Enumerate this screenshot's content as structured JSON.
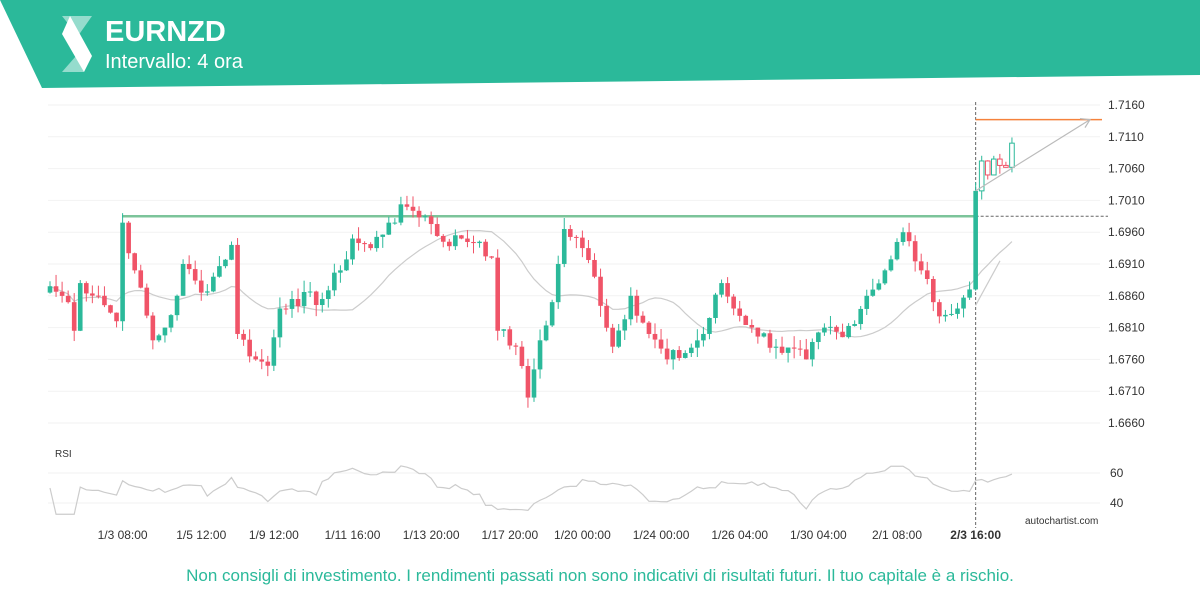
{
  "header": {
    "symbol": "EURNZD",
    "interval": "Intervallo: 4 ora"
  },
  "footer": {
    "disclaimer": "Non consigli di investimento. I rendimenti passati non sono indicativi di risultati futuri. Il tuo capitale è a rischio."
  },
  "watermark": "autochartist.com",
  "colors": {
    "brand": "#2bb99a",
    "up": "#2bb99a",
    "down": "#f05468",
    "resistance": "#7cc49a",
    "target": "#f5823c"
  },
  "chart_data": {
    "type": "candlestick",
    "symbol": "EURNZD",
    "y_ticks": [
      "1.7160",
      "1.7110",
      "1.7060",
      "1.7010",
      "1.6960",
      "1.6910",
      "1.6860",
      "1.6810",
      "1.6760",
      "1.6710",
      "1.6660"
    ],
    "ylim": [
      1.661,
      1.718
    ],
    "x_ticks": [
      {
        "label": "1/3 08:00",
        "i": 12
      },
      {
        "label": "1/5 12:00",
        "i": 25
      },
      {
        "label": "1/9 12:00",
        "i": 37
      },
      {
        "label": "1/11 16:00",
        "i": 50
      },
      {
        "label": "1/13 20:00",
        "i": 63
      },
      {
        "label": "1/17 20:00",
        "i": 76
      },
      {
        "label": "1/20 00:00",
        "i": 88
      },
      {
        "label": "1/24 00:00",
        "i": 101
      },
      {
        "label": "1/26 04:00",
        "i": 114
      },
      {
        "label": "1/30 04:00",
        "i": 127
      },
      {
        "label": "2/1 08:00",
        "i": 140
      },
      {
        "label": "2/3 16:00",
        "i": 153,
        "bold": true
      }
    ],
    "key_closes": [
      [
        0,
        1.6875
      ],
      [
        3,
        1.685
      ],
      [
        4,
        1.6805
      ],
      [
        5,
        1.688
      ],
      [
        8,
        1.686
      ],
      [
        11,
        1.682
      ],
      [
        12,
        1.6975
      ],
      [
        14,
        1.69
      ],
      [
        17,
        1.679
      ],
      [
        19,
        1.681
      ],
      [
        21,
        1.686
      ],
      [
        22,
        1.691
      ],
      [
        25,
        1.6865
      ],
      [
        27,
        1.689
      ],
      [
        30,
        1.694
      ],
      [
        31,
        1.68
      ],
      [
        34,
        1.676
      ],
      [
        36,
        1.675
      ],
      [
        38,
        1.684
      ],
      [
        40,
        1.6855
      ],
      [
        45,
        1.6855
      ],
      [
        48,
        1.69
      ],
      [
        50,
        1.695
      ],
      [
        53,
        1.6935
      ],
      [
        56,
        1.6975
      ],
      [
        59,
        1.7
      ],
      [
        62,
        1.6985
      ],
      [
        65,
        1.6945
      ],
      [
        68,
        1.695
      ],
      [
        71,
        1.6945
      ],
      [
        73,
        1.692
      ],
      [
        74,
        1.6805
      ],
      [
        77,
        1.678
      ],
      [
        79,
        1.67
      ],
      [
        81,
        1.679
      ],
      [
        83,
        1.685
      ],
      [
        85,
        1.6965
      ],
      [
        88,
        1.6935
      ],
      [
        90,
        1.689
      ],
      [
        93,
        1.678
      ],
      [
        96,
        1.686
      ],
      [
        99,
        1.68
      ],
      [
        102,
        1.676
      ],
      [
        105,
        1.677
      ],
      [
        108,
        1.68
      ],
      [
        111,
        1.688
      ],
      [
        113,
        1.684
      ],
      [
        116,
        1.681
      ],
      [
        120,
        1.678
      ],
      [
        125,
        1.676
      ],
      [
        128,
        1.681
      ],
      [
        131,
        1.6795
      ],
      [
        135,
        1.686
      ],
      [
        138,
        1.69
      ],
      [
        141,
        1.696
      ],
      [
        144,
        1.69
      ],
      [
        146,
        1.685
      ],
      [
        148,
        1.683
      ],
      [
        150,
        1.684
      ],
      [
        152,
        1.687
      ],
      [
        153,
        1.7025
      ],
      [
        154,
        1.7072
      ],
      [
        155,
        1.705
      ],
      [
        156,
        1.7075
      ],
      [
        157,
        1.7065
      ],
      [
        158,
        1.7062
      ],
      [
        159,
        1.71
      ]
    ],
    "resistance": 1.6985,
    "target": 1.7137,
    "breakout_index": 153,
    "rsi": {
      "label": "RSI",
      "ticks": [
        "60",
        "40"
      ],
      "range": [
        30,
        70
      ]
    }
  }
}
